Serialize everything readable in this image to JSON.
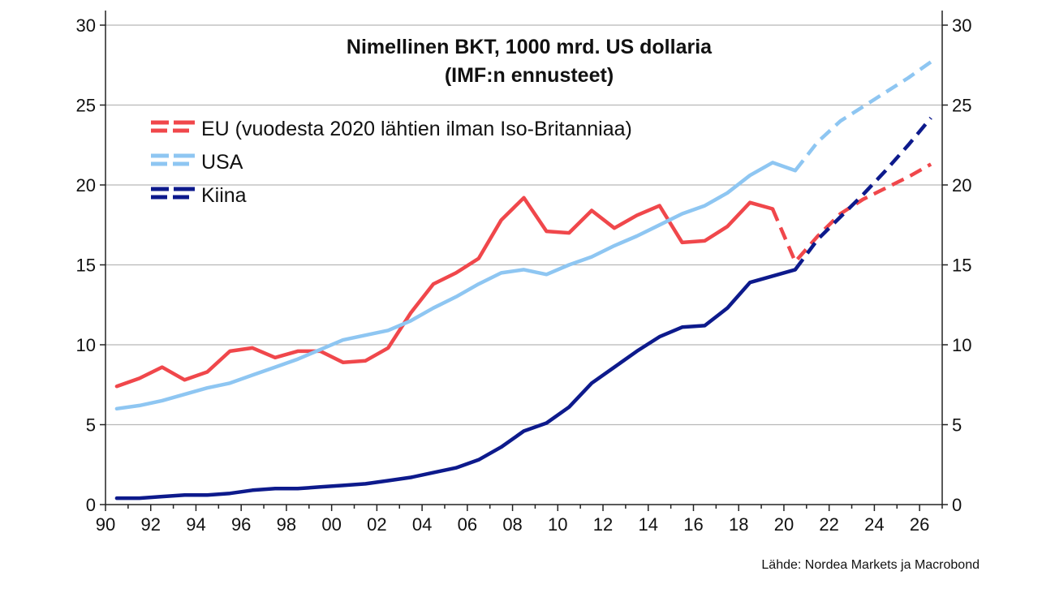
{
  "chart_data": {
    "type": "line",
    "title": "Nimellinen BKT, 1000 mrd. US dollaria",
    "subtitle": "(IMF:n ennusteet)",
    "source": "Lähde: Nordea Markets ja Macrobond",
    "xlim": [
      1990,
      2027
    ],
    "ylim": [
      0,
      30
    ],
    "x_tick_labels": [
      "90",
      "92",
      "94",
      "96",
      "98",
      "00",
      "02",
      "04",
      "06",
      "08",
      "10",
      "12",
      "14",
      "16",
      "18",
      "20",
      "22",
      "24",
      "26"
    ],
    "y_ticks": [
      0,
      5,
      10,
      15,
      20,
      25,
      30
    ],
    "grid": true,
    "legend_position": "upper-left",
    "series": [
      {
        "name": "EU (vuodesta 2020 lähtien ilman Iso-Britanniaa)",
        "color": "#f0474b",
        "actual": {
          "x": [
            1990.5,
            1991.5,
            1992.5,
            1993.5,
            1994.5,
            1995.5,
            1996.5,
            1997.5,
            1998.5,
            1999.5,
            2000.5,
            2001.5,
            2002.5,
            2003.5,
            2004.5,
            2005.5,
            2006.5,
            2007.5,
            2008.5,
            2009.5,
            2010.5,
            2011.5,
            2012.5,
            2013.5,
            2014.5,
            2015.5,
            2016.5,
            2017.5,
            2018.5,
            2019.5
          ],
          "y": [
            7.4,
            7.9,
            8.6,
            7.8,
            8.3,
            9.6,
            9.8,
            9.2,
            9.6,
            9.6,
            8.9,
            9.0,
            9.8,
            12.0,
            13.8,
            14.5,
            15.4,
            17.8,
            19.2,
            17.1,
            17.0,
            18.4,
            17.3,
            18.1,
            18.7,
            16.4,
            16.5,
            17.4,
            18.9,
            18.5
          ]
        },
        "forecast": {
          "x": [
            2019.5,
            2020.5,
            2021.5,
            2022.5,
            2023.5,
            2024.5,
            2025.5,
            2026.5
          ],
          "y": [
            18.5,
            15.2,
            16.8,
            18.2,
            19.1,
            19.8,
            20.5,
            21.3
          ]
        }
      },
      {
        "name": "USA",
        "color": "#8ec6f2",
        "actual": {
          "x": [
            1990.5,
            1991.5,
            1992.5,
            1993.5,
            1994.5,
            1995.5,
            1996.5,
            1997.5,
            1998.5,
            1999.5,
            2000.5,
            2001.5,
            2002.5,
            2003.5,
            2004.5,
            2005.5,
            2006.5,
            2007.5,
            2008.5,
            2009.5,
            2010.5,
            2011.5,
            2012.5,
            2013.5,
            2014.5,
            2015.5,
            2016.5,
            2017.5,
            2018.5,
            2019.5,
            2020.5
          ],
          "y": [
            6.0,
            6.2,
            6.5,
            6.9,
            7.3,
            7.6,
            8.1,
            8.6,
            9.1,
            9.7,
            10.3,
            10.6,
            10.9,
            11.5,
            12.3,
            13.0,
            13.8,
            14.5,
            14.7,
            14.4,
            15.0,
            15.5,
            16.2,
            16.8,
            17.5,
            18.2,
            18.7,
            19.5,
            20.6,
            21.4,
            20.9
          ]
        },
        "forecast": {
          "x": [
            2020.5,
            2021.5,
            2022.5,
            2023.5,
            2024.5,
            2025.5,
            2026.5
          ],
          "y": [
            20.9,
            22.7,
            24.0,
            24.9,
            25.8,
            26.7,
            27.7
          ]
        }
      },
      {
        "name": "Kiina",
        "color": "#0d1a8c",
        "actual": {
          "x": [
            1990.5,
            1991.5,
            1992.5,
            1993.5,
            1994.5,
            1995.5,
            1996.5,
            1997.5,
            1998.5,
            1999.5,
            2000.5,
            2001.5,
            2002.5,
            2003.5,
            2004.5,
            2005.5,
            2006.5,
            2007.5,
            2008.5,
            2009.5,
            2010.5,
            2011.5,
            2012.5,
            2013.5,
            2014.5,
            2015.5,
            2016.5,
            2017.5,
            2018.5,
            2019.5,
            2020.5
          ],
          "y": [
            0.4,
            0.4,
            0.5,
            0.6,
            0.6,
            0.7,
            0.9,
            1.0,
            1.0,
            1.1,
            1.2,
            1.3,
            1.5,
            1.7,
            2.0,
            2.3,
            2.8,
            3.6,
            4.6,
            5.1,
            6.1,
            7.6,
            8.6,
            9.6,
            10.5,
            11.1,
            11.2,
            12.3,
            13.9,
            14.3,
            14.7
          ]
        },
        "forecast": {
          "x": [
            2020.5,
            2021.5,
            2022.5,
            2023.5,
            2024.5,
            2025.5,
            2026.5
          ],
          "y": [
            14.7,
            16.6,
            18.0,
            19.4,
            20.9,
            22.5,
            24.2
          ]
        }
      }
    ]
  }
}
